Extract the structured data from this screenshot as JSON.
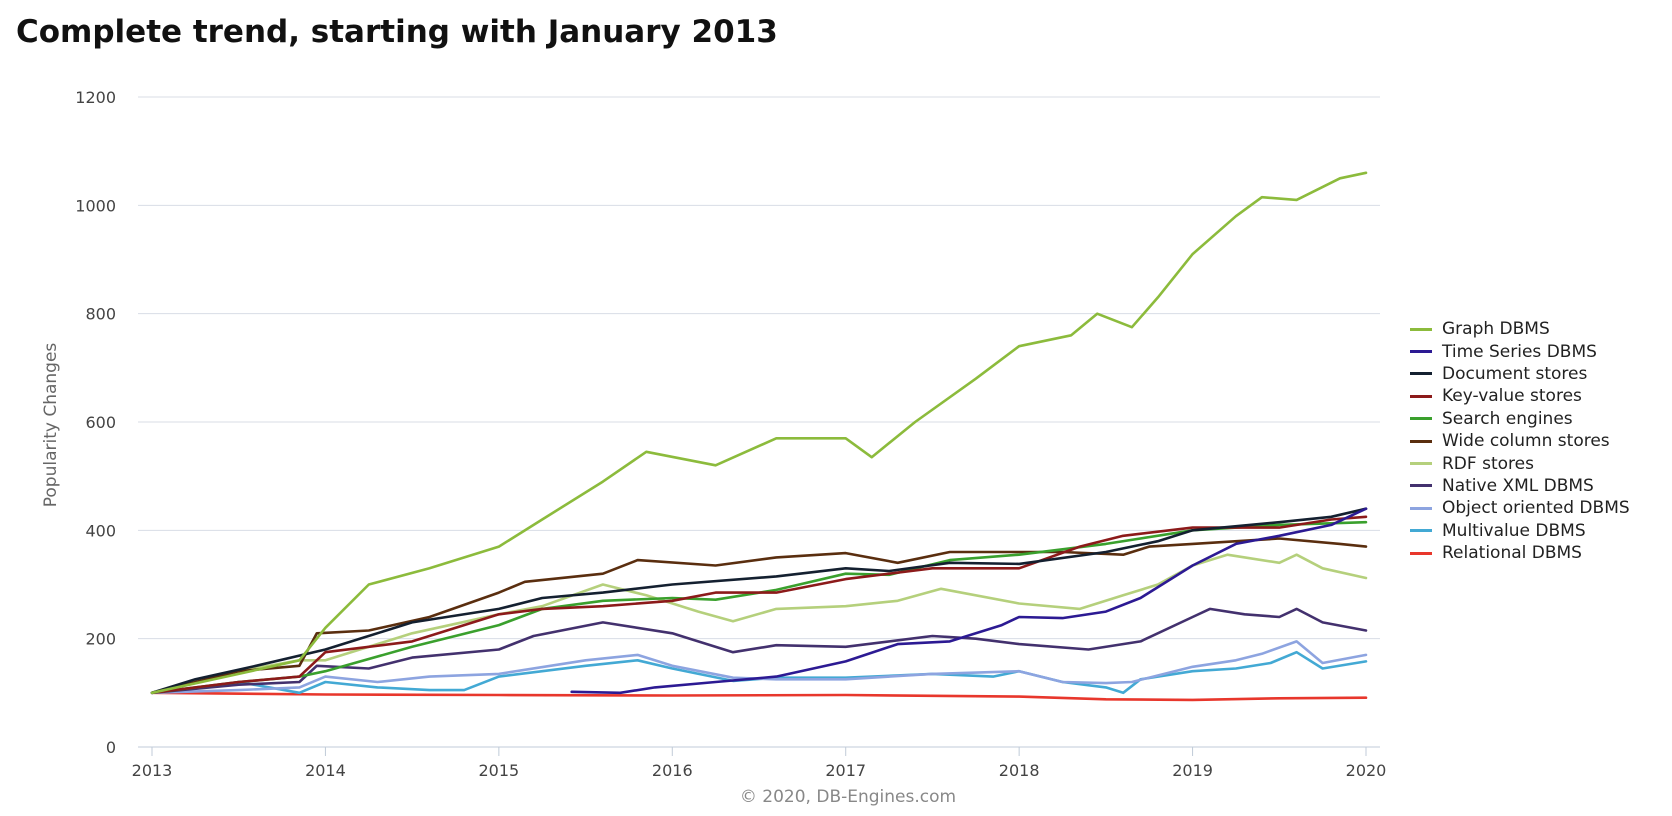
{
  "chart_data": {
    "type": "line",
    "title": "Complete trend, starting with January 2013",
    "ylabel": "Popularity Changes",
    "xlabel": "",
    "ylim": [
      0,
      1200
    ],
    "xlim": [
      2013,
      2020
    ],
    "yticks": [
      "0",
      "200",
      "400",
      "600",
      "800",
      "1000",
      "1200"
    ],
    "xticks": [
      "2013",
      "2014",
      "2015",
      "2016",
      "2017",
      "2018",
      "2019",
      "2020"
    ],
    "grid": "horizontal",
    "legend_position": "right",
    "credit": "© 2020, DB-Engines.com",
    "series": [
      {
        "name": "Graph DBMS",
        "color": "#8cbb3c",
        "points": [
          [
            2013,
            100
          ],
          [
            2013.5,
            135
          ],
          [
            2013.85,
            160
          ],
          [
            2014,
            220
          ],
          [
            2014.25,
            300
          ],
          [
            2014.6,
            330
          ],
          [
            2015,
            370
          ],
          [
            2015.25,
            420
          ],
          [
            2015.6,
            490
          ],
          [
            2015.85,
            545
          ],
          [
            2016.25,
            520
          ],
          [
            2016.6,
            570
          ],
          [
            2017,
            570
          ],
          [
            2017.15,
            535
          ],
          [
            2017.4,
            600
          ],
          [
            2017.75,
            680
          ],
          [
            2018,
            740
          ],
          [
            2018.3,
            760
          ],
          [
            2018.45,
            800
          ],
          [
            2018.65,
            775
          ],
          [
            2018.8,
            830
          ],
          [
            2019,
            910
          ],
          [
            2019.25,
            980
          ],
          [
            2019.4,
            1015
          ],
          [
            2019.6,
            1010
          ],
          [
            2019.85,
            1050
          ],
          [
            2020,
            1060
          ]
        ]
      },
      {
        "name": "Time Series DBMS",
        "color": "#2c1a93",
        "points": [
          [
            2015.42,
            102
          ],
          [
            2015.7,
            100
          ],
          [
            2015.9,
            110
          ],
          [
            2016.25,
            120
          ],
          [
            2016.6,
            130
          ],
          [
            2017,
            158
          ],
          [
            2017.3,
            190
          ],
          [
            2017.6,
            195
          ],
          [
            2017.9,
            225
          ],
          [
            2018,
            240
          ],
          [
            2018.25,
            238
          ],
          [
            2018.5,
            250
          ],
          [
            2018.7,
            275
          ],
          [
            2019,
            335
          ],
          [
            2019.25,
            375
          ],
          [
            2019.5,
            390
          ],
          [
            2019.8,
            410
          ],
          [
            2020,
            440
          ]
        ]
      },
      {
        "name": "Document stores",
        "color": "#142030",
        "points": [
          [
            2013,
            100
          ],
          [
            2013.25,
            125
          ],
          [
            2013.6,
            150
          ],
          [
            2014,
            180
          ],
          [
            2014.5,
            230
          ],
          [
            2015,
            255
          ],
          [
            2015.25,
            275
          ],
          [
            2015.6,
            285
          ],
          [
            2016,
            300
          ],
          [
            2016.6,
            315
          ],
          [
            2017,
            330
          ],
          [
            2017.25,
            325
          ],
          [
            2017.6,
            340
          ],
          [
            2018,
            338
          ],
          [
            2018.5,
            360
          ],
          [
            2018.8,
            380
          ],
          [
            2019,
            400
          ],
          [
            2019.5,
            415
          ],
          [
            2019.8,
            425
          ],
          [
            2020,
            440
          ]
        ]
      },
      {
        "name": "Key-value stores",
        "color": "#8c1a1a",
        "points": [
          [
            2013,
            100
          ],
          [
            2013.5,
            120
          ],
          [
            2013.85,
            130
          ],
          [
            2014,
            175
          ],
          [
            2014.5,
            195
          ],
          [
            2015,
            245
          ],
          [
            2015.25,
            255
          ],
          [
            2015.6,
            260
          ],
          [
            2016,
            270
          ],
          [
            2016.25,
            285
          ],
          [
            2016.6,
            285
          ],
          [
            2017,
            310
          ],
          [
            2017.5,
            330
          ],
          [
            2018,
            330
          ],
          [
            2018.35,
            370
          ],
          [
            2018.6,
            390
          ],
          [
            2019,
            405
          ],
          [
            2019.5,
            405
          ],
          [
            2019.8,
            420
          ],
          [
            2020,
            425
          ]
        ]
      },
      {
        "name": "Search engines",
        "color": "#3aa02d",
        "points": [
          [
            2013,
            100
          ],
          [
            2013.5,
            120
          ],
          [
            2013.85,
            130
          ],
          [
            2014,
            140
          ],
          [
            2014.5,
            185
          ],
          [
            2015,
            225
          ],
          [
            2015.25,
            255
          ],
          [
            2015.6,
            270
          ],
          [
            2016,
            275
          ],
          [
            2016.25,
            272
          ],
          [
            2016.6,
            290
          ],
          [
            2017,
            320
          ],
          [
            2017.25,
            318
          ],
          [
            2017.6,
            345
          ],
          [
            2018,
            355
          ],
          [
            2018.5,
            375
          ],
          [
            2019,
            400
          ],
          [
            2019.5,
            410
          ],
          [
            2020,
            415
          ]
        ]
      },
      {
        "name": "Wide column stores",
        "color": "#5a2e0f",
        "points": [
          [
            2013,
            100
          ],
          [
            2013.5,
            140
          ],
          [
            2013.85,
            150
          ],
          [
            2013.95,
            210
          ],
          [
            2014.25,
            215
          ],
          [
            2014.6,
            240
          ],
          [
            2015,
            285
          ],
          [
            2015.15,
            305
          ],
          [
            2015.6,
            320
          ],
          [
            2015.8,
            345
          ],
          [
            2016.25,
            335
          ],
          [
            2016.6,
            350
          ],
          [
            2017,
            358
          ],
          [
            2017.3,
            340
          ],
          [
            2017.6,
            360
          ],
          [
            2018,
            360
          ],
          [
            2018.25,
            360
          ],
          [
            2018.6,
            355
          ],
          [
            2018.75,
            370
          ],
          [
            2019,
            375
          ],
          [
            2019.5,
            385
          ],
          [
            2019.85,
            375
          ],
          [
            2020,
            370
          ]
        ]
      },
      {
        "name": "RDF stores",
        "color": "#b5d07c",
        "points": [
          [
            2013,
            100
          ],
          [
            2013.5,
            140
          ],
          [
            2013.85,
            160
          ],
          [
            2014,
            160
          ],
          [
            2014.5,
            210
          ],
          [
            2015,
            245
          ],
          [
            2015.25,
            260
          ],
          [
            2015.6,
            300
          ],
          [
            2015.85,
            280
          ],
          [
            2016.15,
            250
          ],
          [
            2016.35,
            232
          ],
          [
            2016.6,
            255
          ],
          [
            2017,
            260
          ],
          [
            2017.3,
            270
          ],
          [
            2017.55,
            292
          ],
          [
            2018,
            265
          ],
          [
            2018.35,
            255
          ],
          [
            2018.6,
            280
          ],
          [
            2018.8,
            300
          ],
          [
            2019,
            335
          ],
          [
            2019.2,
            355
          ],
          [
            2019.5,
            340
          ],
          [
            2019.6,
            355
          ],
          [
            2019.75,
            330
          ],
          [
            2020,
            312
          ]
        ]
      },
      {
        "name": "Native XML DBMS",
        "color": "#43316e",
        "points": [
          [
            2013,
            100
          ],
          [
            2013.5,
            115
          ],
          [
            2013.85,
            120
          ],
          [
            2013.95,
            150
          ],
          [
            2014.25,
            145
          ],
          [
            2014.5,
            165
          ],
          [
            2015,
            180
          ],
          [
            2015.2,
            205
          ],
          [
            2015.6,
            230
          ],
          [
            2016,
            210
          ],
          [
            2016.35,
            175
          ],
          [
            2016.6,
            188
          ],
          [
            2017,
            185
          ],
          [
            2017.5,
            205
          ],
          [
            2017.75,
            200
          ],
          [
            2018,
            190
          ],
          [
            2018.4,
            180
          ],
          [
            2018.7,
            195
          ],
          [
            2019,
            240
          ],
          [
            2019.1,
            255
          ],
          [
            2019.3,
            245
          ],
          [
            2019.5,
            240
          ],
          [
            2019.6,
            255
          ],
          [
            2019.75,
            230
          ],
          [
            2020,
            215
          ]
        ]
      },
      {
        "name": "Object oriented DBMS",
        "color": "#8da4e0",
        "points": [
          [
            2013,
            100
          ],
          [
            2013.5,
            105
          ],
          [
            2013.85,
            110
          ],
          [
            2014,
            130
          ],
          [
            2014.3,
            120
          ],
          [
            2014.6,
            130
          ],
          [
            2015,
            135
          ],
          [
            2015.5,
            160
          ],
          [
            2015.8,
            170
          ],
          [
            2016,
            150
          ],
          [
            2016.35,
            128
          ],
          [
            2016.6,
            125
          ],
          [
            2017,
            125
          ],
          [
            2017.5,
            135
          ],
          [
            2018,
            140
          ],
          [
            2018.25,
            120
          ],
          [
            2018.5,
            118
          ],
          [
            2018.65,
            120
          ],
          [
            2019,
            148
          ],
          [
            2019.25,
            160
          ],
          [
            2019.4,
            172
          ],
          [
            2019.6,
            195
          ],
          [
            2019.75,
            155
          ],
          [
            2020,
            170
          ]
        ]
      },
      {
        "name": "Multivalue DBMS",
        "color": "#43a9d4",
        "points": [
          [
            2013,
            100
          ],
          [
            2013.3,
            110
          ],
          [
            2013.5,
            120
          ],
          [
            2013.85,
            100
          ],
          [
            2014,
            120
          ],
          [
            2014.3,
            110
          ],
          [
            2014.6,
            105
          ],
          [
            2014.8,
            105
          ],
          [
            2015,
            130
          ],
          [
            2015.5,
            150
          ],
          [
            2015.8,
            160
          ],
          [
            2016,
            145
          ],
          [
            2016.35,
            122
          ],
          [
            2016.6,
            128
          ],
          [
            2017,
            128
          ],
          [
            2017.5,
            135
          ],
          [
            2017.85,
            130
          ],
          [
            2018,
            140
          ],
          [
            2018.25,
            120
          ],
          [
            2018.5,
            110
          ],
          [
            2018.6,
            100
          ],
          [
            2018.7,
            125
          ],
          [
            2019,
            140
          ],
          [
            2019.25,
            145
          ],
          [
            2019.45,
            155
          ],
          [
            2019.6,
            175
          ],
          [
            2019.75,
            145
          ],
          [
            2020,
            158
          ]
        ]
      },
      {
        "name": "Relational DBMS",
        "color": "#e8372c",
        "points": [
          [
            2013,
            100
          ],
          [
            2014,
            97
          ],
          [
            2015,
            96
          ],
          [
            2016,
            95
          ],
          [
            2017,
            96
          ],
          [
            2018,
            93
          ],
          [
            2018.5,
            88
          ],
          [
            2019,
            87
          ],
          [
            2019.5,
            90
          ],
          [
            2020,
            91
          ]
        ]
      }
    ]
  }
}
